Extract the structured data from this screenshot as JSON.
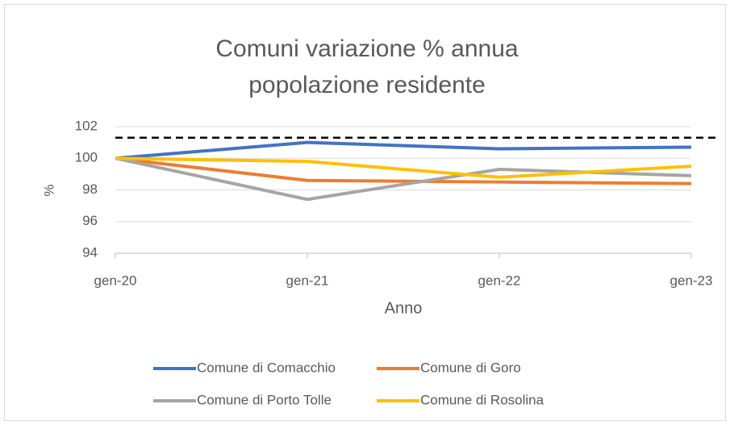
{
  "chart_data": {
    "type": "line",
    "title": "Comuni variazione % annua popolazione residente",
    "x_label": "Anno",
    "y_label": "%",
    "categories": [
      "gen-20",
      "gen-21",
      "gen-22",
      "gen-23"
    ],
    "series": [
      {
        "name": "Comune di Comacchio",
        "color": "#4472c4",
        "values": [
          100,
          101.0,
          100.6,
          100.7
        ]
      },
      {
        "name": "Comune di Goro",
        "color": "#ed7d31",
        "values": [
          100,
          98.6,
          98.5,
          98.4
        ]
      },
      {
        "name": "Comune di Porto Tolle",
        "color": "#a5a5a5",
        "values": [
          100,
          97.4,
          99.3,
          98.9
        ]
      },
      {
        "name": "Comune di Rosolina",
        "color": "#ffc000",
        "values": [
          100,
          99.8,
          98.8,
          99.5
        ]
      }
    ],
    "reference_line": {
      "value": 101.3,
      "color": "#000000",
      "style": "dashed"
    },
    "ylim": [
      94,
      102
    ],
    "yticks": [
      94,
      96,
      98,
      100,
      102
    ],
    "grid": true,
    "legend": "bottom"
  }
}
